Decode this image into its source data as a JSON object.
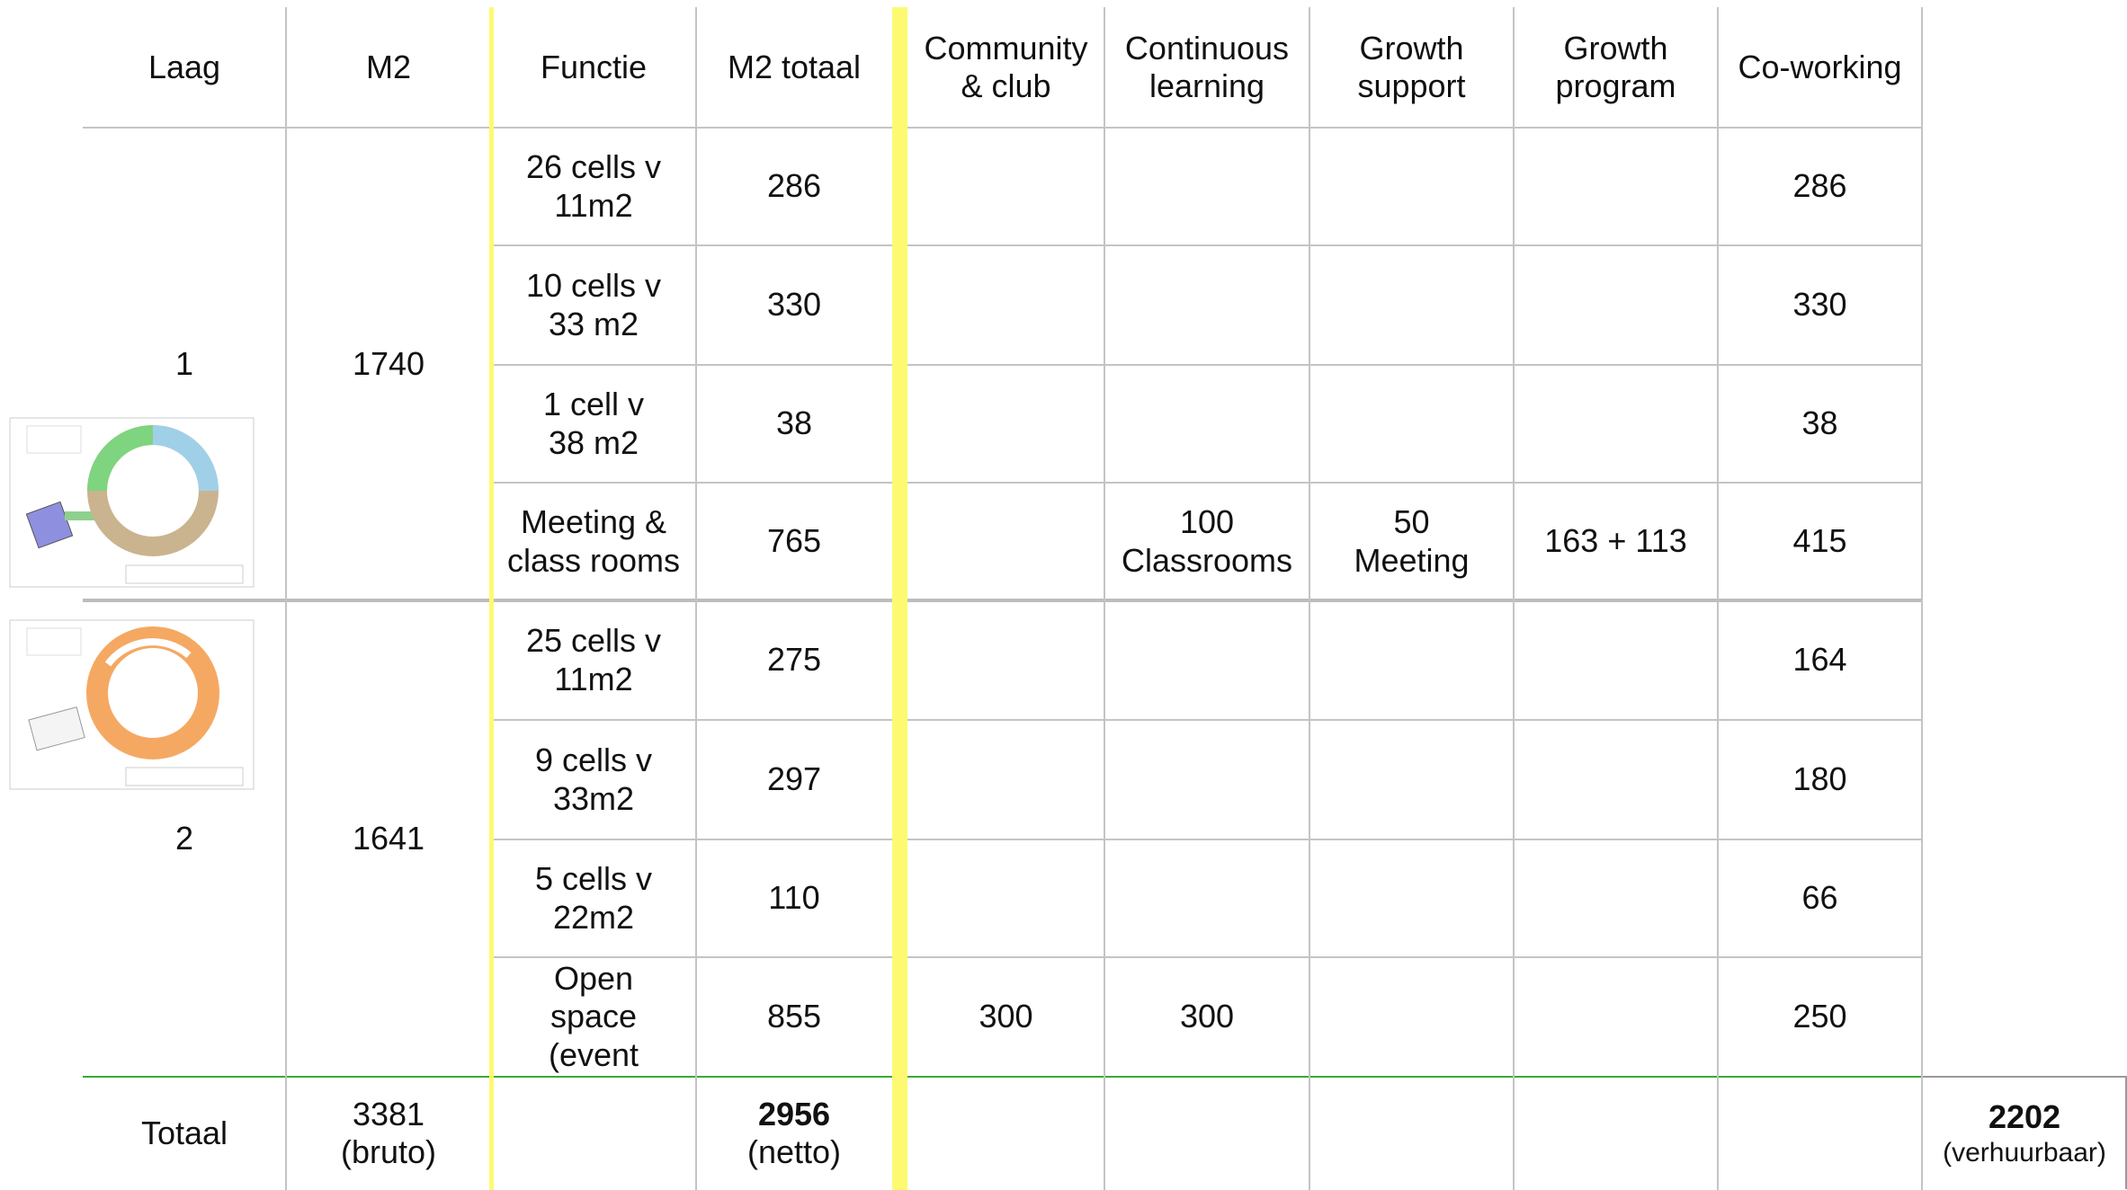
{
  "header": [
    "Laag",
    "M2",
    "Functie",
    "M2 totaal",
    "Community & club",
    "Continuous learning",
    "Growth support",
    "Growth program",
    "Co-working"
  ],
  "floors": [
    {
      "laag": "1",
      "m2": 1740,
      "rows": [
        [
          "26 cells v\n11m2",
          286,
          null,
          null,
          null,
          null,
          286
        ],
        [
          "10 cells v\n33 m2",
          330,
          null,
          null,
          null,
          null,
          330
        ],
        [
          "1 cell v\n38 m2",
          38,
          null,
          null,
          null,
          null,
          38
        ],
        [
          "Meeting &\nclass rooms",
          765,
          null,
          "100\nClassrooms",
          "50\nMeeting",
          "163 + 113",
          415
        ]
      ]
    },
    {
      "laag": "2",
      "m2": 1641,
      "rows": [
        [
          "25 cells v\n11m2",
          275,
          null,
          null,
          null,
          null,
          164
        ],
        [
          "9 cells v\n33m2",
          297,
          null,
          null,
          null,
          null,
          180
        ],
        [
          "5 cells v\n22m2",
          110,
          null,
          null,
          null,
          null,
          66
        ],
        [
          "Open\nspace\n(event",
          855,
          300,
          300,
          null,
          null,
          250
        ]
      ]
    }
  ],
  "totaal": {
    "label": "Totaal",
    "m2": 3381,
    "m2_note": "(bruto)",
    "m2_totaal": 2956,
    "m2_totaal_note": "(netto)",
    "verhuurbaar": 2202,
    "verhuurbaar_note": "(verhuurbaar)"
  }
}
